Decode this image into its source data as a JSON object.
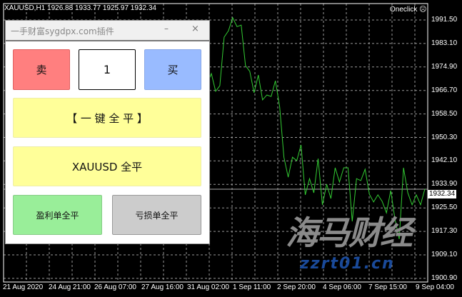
{
  "chart": {
    "symbol_info": "XAUUSD,H1  1926.88 1933.77 1925.97 1932.34",
    "oneclick_label": "Oneclick",
    "current_price": "1932.34",
    "price_labels": [
      "1991.50",
      "1983.10",
      "1974.90",
      "1966.70",
      "1958.50",
      "1950.30",
      "1942.10",
      "1933.90",
      "1925.50",
      "1917.30",
      "1909.10",
      "1900.90"
    ],
    "time_labels": [
      "21 Aug 2020",
      "24 Aug 21:00",
      "26 Aug 07:00",
      "27 Aug 16:00",
      "31 Aug 02:00",
      "1 Sep 11:00",
      "2 Sep 20:00",
      "4 Sep 06:00",
      "7 Sep 15:00",
      "9 Sep 04:00"
    ],
    "line_color": "#33cc33",
    "watermark_logo": "海马财经",
    "watermark_url": "zzrt01.cn"
  },
  "chart_data": {
    "type": "line",
    "ylim": [
      1900.9,
      1991.5
    ],
    "grid": true,
    "values": [
      1969.2,
      1972.7,
      1966.5,
      1968.5,
      1985.5,
      1987.7,
      1992.3,
      1989.2,
      1989.7,
      1975.5,
      1973.5,
      1966.0,
      1972.2,
      1963.5,
      1965.2,
      1964.7,
      1970.2,
      1961.0,
      1943.4,
      1936.4,
      1943.4,
      1942.2,
      1947.7,
      1930.2,
      1935.9,
      1930.9,
      1942.9,
      1926.7,
      1933.9,
      1928.9,
      1939.7,
      1934.7,
      1939.7,
      1939.7,
      1920.9,
      1935.9,
      1935.2,
      1939.2,
      1930.4,
      1927.7,
      1930.2,
      1927.9,
      1923.9,
      1931.7,
      1921.7,
      1914.7,
      1939.7,
      1930.9,
      1926.7,
      1930.2,
      1926.7,
      1932.3
    ]
  },
  "panel": {
    "title": "一手财富sygdpx.com插件",
    "minimize": "–",
    "close": "×",
    "sell": "卖",
    "lots": "1",
    "buy": "买",
    "close_all": "【 一 键 全 平 】",
    "close_symbol": "XAUUSD 全平",
    "close_profit": "盈利单全平",
    "close_loss": "亏损单全平",
    "colors": {
      "sell": "#ff7f7f",
      "buy": "#99bbff",
      "close_all": "#ffff99",
      "profit": "#99ee99",
      "loss": "#cccccc"
    }
  }
}
